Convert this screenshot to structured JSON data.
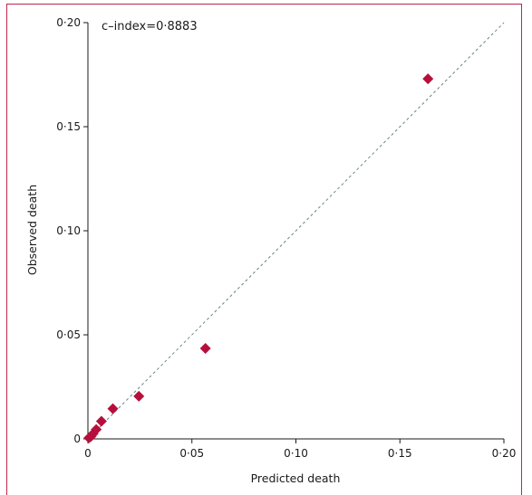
{
  "chart_data": {
    "type": "scatter",
    "xlabel": "Predicted death",
    "ylabel": "Observed death",
    "xlim": [
      0,
      0.2
    ],
    "ylim": [
      0,
      0.2
    ],
    "x_ticks": [
      0,
      0.05,
      0.1,
      0.15,
      0.2
    ],
    "y_ticks": [
      0,
      0.05,
      0.1,
      0.15,
      0.2
    ],
    "x_tick_labels": [
      "0",
      "0·05",
      "0·10",
      "0·15",
      "0·20"
    ],
    "y_tick_labels": [
      "0",
      "0·05",
      "0·10",
      "0·15",
      "0·20"
    ],
    "annotation": "c–index=0·8883",
    "reference_line": "y = x (dashed)",
    "grid": false,
    "marker": "diamond",
    "marker_color": "#b5103c",
    "reference_line_color": "#6e8086",
    "frame_color": "#c0254f",
    "points": [
      {
        "x": 0.0005,
        "y": 0.0005
      },
      {
        "x": 0.0015,
        "y": 0.0012
      },
      {
        "x": 0.0025,
        "y": 0.0025
      },
      {
        "x": 0.004,
        "y": 0.0045
      },
      {
        "x": 0.0065,
        "y": 0.0085
      },
      {
        "x": 0.012,
        "y": 0.0145
      },
      {
        "x": 0.0245,
        "y": 0.0205
      },
      {
        "x": 0.0565,
        "y": 0.0435
      },
      {
        "x": 0.1635,
        "y": 0.173
      }
    ]
  }
}
